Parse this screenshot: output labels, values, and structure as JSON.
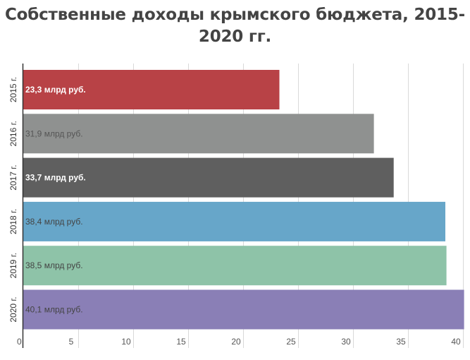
{
  "chart_data": {
    "type": "bar",
    "orientation": "horizontal",
    "title_lines": [
      "Собственные доходы крымского бюджета, 2015-",
      "2020 гг."
    ],
    "categories": [
      "2015 г.",
      "2016 г.",
      "2017 г.",
      "2018 г.",
      "2019 г.",
      "2020 г."
    ],
    "values": [
      23.3,
      31.9,
      33.7,
      38.4,
      38.5,
      40.1
    ],
    "data_labels": [
      "23,3 млрд руб.",
      "31,9 млрд руб.",
      "33,7 млрд руб.",
      "38,4 млрд руб.",
      "38,5 млрд руб.",
      "40,1 млрд руб."
    ],
    "colors": [
      "#b84246",
      "#8f9190",
      "#5f5f5f",
      "#67a6c9",
      "#8ec3a8",
      "#8a7fb6"
    ],
    "label_colors": [
      "#ffffff",
      "#555555",
      "#ffffff",
      "#444444",
      "#444444",
      "#444444"
    ],
    "label_bold": [
      true,
      false,
      true,
      false,
      false,
      false
    ],
    "x_ticks": [
      0,
      5,
      10,
      15,
      20,
      25,
      30,
      35,
      40
    ],
    "xlim": [
      0,
      40
    ],
    "grid": true
  }
}
